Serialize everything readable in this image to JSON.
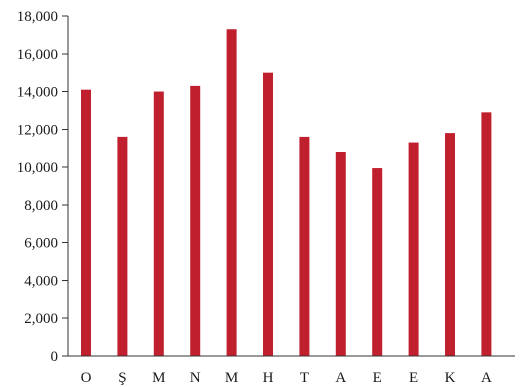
{
  "chart_data": {
    "type": "bar",
    "title": "",
    "xlabel": "",
    "ylabel": "",
    "categories": [
      "O",
      "Ş",
      "M",
      "N",
      "M",
      "H",
      "T",
      "A",
      "E",
      "E",
      "K",
      "A"
    ],
    "values": [
      14100,
      11600,
      14000,
      14300,
      17300,
      15000,
      11600,
      10800,
      9950,
      11300,
      11800,
      12900
    ],
    "ylim": [
      0,
      18000
    ],
    "yticks": [
      0,
      2000,
      4000,
      6000,
      8000,
      10000,
      12000,
      14000,
      16000,
      18000
    ],
    "ytick_labels": [
      "0",
      "2,000",
      "4,000",
      "6,000",
      "8,000",
      "10,000",
      "12,000",
      "14,000",
      "16,000",
      "18,000"
    ],
    "bar_color": "#c0202e",
    "grid": false,
    "legend": "none"
  }
}
